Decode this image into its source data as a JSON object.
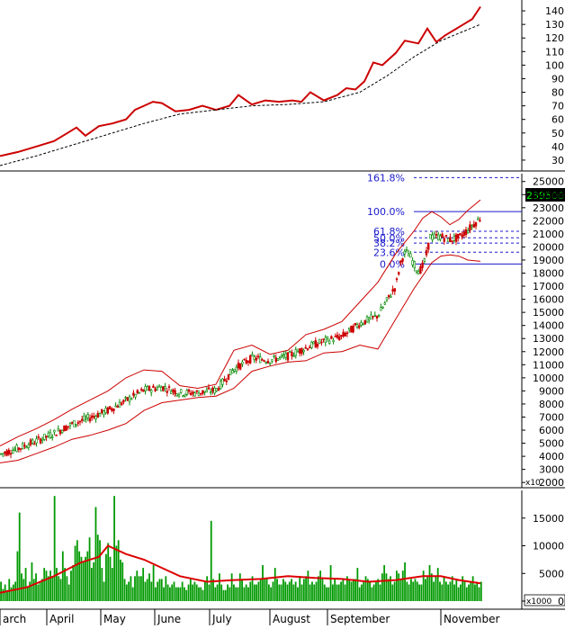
{
  "chart_data": [
    {
      "panel": "top-line",
      "type": "line",
      "y_ticks": [
        30,
        40,
        50,
        60,
        70,
        80,
        90,
        100,
        110,
        120,
        130,
        140
      ],
      "ylim": [
        22,
        148
      ],
      "grid": false,
      "series": [
        {
          "color": "#cc0000",
          "style": "solid",
          "points": [
            [
              0,
              33
            ],
            [
              20,
              36
            ],
            [
              40,
              40
            ],
            [
              60,
              44
            ],
            [
              75,
              50
            ],
            [
              85,
              54
            ],
            [
              95,
              48
            ],
            [
              110,
              55
            ],
            [
              125,
              57
            ],
            [
              140,
              60
            ],
            [
              150,
              67
            ],
            [
              160,
              70
            ],
            [
              170,
              73
            ],
            [
              180,
              72
            ],
            [
              195,
              66
            ],
            [
              210,
              67
            ],
            [
              225,
              70
            ],
            [
              240,
              67
            ],
            [
              255,
              70
            ],
            [
              265,
              78
            ],
            [
              280,
              71
            ],
            [
              295,
              74
            ],
            [
              310,
              73
            ],
            [
              325,
              74
            ],
            [
              335,
              73
            ],
            [
              345,
              80
            ],
            [
              360,
              74
            ],
            [
              375,
              78
            ],
            [
              385,
              83
            ],
            [
              395,
              82
            ],
            [
              405,
              88
            ],
            [
              415,
              102
            ],
            [
              425,
              100
            ],
            [
              440,
              109
            ],
            [
              450,
              118
            ],
            [
              465,
              116
            ],
            [
              475,
              127
            ],
            [
              485,
              117
            ],
            [
              495,
              122
            ],
            [
              510,
              128
            ],
            [
              525,
              134
            ],
            [
              534,
              143
            ]
          ]
        },
        {
          "color": "#000000",
          "style": "dashed",
          "points": [
            [
              0,
              26
            ],
            [
              40,
              33
            ],
            [
              80,
              41
            ],
            [
              120,
              49
            ],
            [
              160,
              57
            ],
            [
              200,
              64
            ],
            [
              240,
              67
            ],
            [
              280,
              70
            ],
            [
              320,
              71
            ],
            [
              360,
              73
            ],
            [
              400,
              80
            ],
            [
              430,
              92
            ],
            [
              460,
              106
            ],
            [
              490,
              118
            ],
            [
              534,
              130
            ]
          ]
        }
      ]
    },
    {
      "panel": "price",
      "type": "candlestick",
      "y_ticks": [
        2000,
        3000,
        4000,
        5000,
        6000,
        7000,
        8000,
        9000,
        10000,
        11000,
        12000,
        13000,
        14000,
        15000,
        16000,
        17000,
        18000,
        19000,
        20000,
        21000,
        22000,
        23000,
        24000,
        25000
      ],
      "ylim": [
        1600,
        25600
      ],
      "last_price_label": "239500.0",
      "y_unit_label": "x10",
      "fibonacci": [
        {
          "label": "161.8%",
          "value": 25300
        },
        {
          "label": "100.0%",
          "value": 22700
        },
        {
          "label": "61.8%",
          "value": 21200
        },
        {
          "label": "50.0%",
          "value": 20700
        },
        {
          "label": "38.2%",
          "value": 20300
        },
        {
          "label": "23.6%",
          "value": 19600
        },
        {
          "label": "0.0%",
          "value": 18700
        }
      ],
      "bollinger": {
        "x": [
          0,
          20,
          40,
          60,
          80,
          100,
          120,
          140,
          160,
          180,
          200,
          220,
          240,
          260,
          280,
          300,
          320,
          340,
          360,
          380,
          400,
          420,
          440,
          460,
          470,
          480,
          490,
          500,
          510,
          520,
          534
        ],
        "upper": [
          4800,
          5500,
          6100,
          6800,
          7600,
          8300,
          9000,
          10000,
          10600,
          10500,
          9400,
          9200,
          9500,
          12100,
          12500,
          11800,
          12100,
          13300,
          13700,
          14300,
          15800,
          17300,
          19500,
          21200,
          22200,
          22700,
          22300,
          21700,
          22100,
          22800,
          23600
        ],
        "lower": [
          3500,
          3700,
          4200,
          4700,
          5300,
          5600,
          6000,
          6500,
          7500,
          8100,
          8300,
          8500,
          8600,
          9200,
          10500,
          10900,
          11200,
          11300,
          11900,
          12000,
          12500,
          12200,
          14500,
          16800,
          17800,
          18800,
          19300,
          19400,
          19300,
          19000,
          18900
        ]
      },
      "x_labels": [
        "arch",
        "April",
        "May",
        "June",
        "July",
        "August",
        "September",
        "November"
      ]
    },
    {
      "panel": "volume",
      "type": "bar",
      "y_ticks": [
        0,
        5000,
        10000,
        15000
      ],
      "ylim": [
        0,
        20000
      ],
      "y_unit_label": "x1000",
      "values": [
        3500,
        2200,
        3000,
        2000,
        4000,
        2500,
        3000,
        3500,
        9000,
        16000,
        5000,
        4000,
        6000,
        2500,
        3500,
        7000,
        4000,
        5000,
        3000,
        3500,
        4000,
        6000,
        5500,
        4500,
        5500,
        4500,
        19000,
        6000,
        4500,
        4000,
        9000,
        6000,
        4500,
        3000,
        5500,
        6500,
        10000,
        11000,
        9000,
        8000,
        7000,
        8000,
        9000,
        11500,
        6000,
        7000,
        17000,
        12000,
        11000,
        6000,
        3500,
        8500,
        10500,
        8000,
        6000,
        19000,
        10000,
        11000,
        7500,
        7000,
        4000,
        3000,
        3500,
        4500,
        2500,
        4500,
        5500,
        4500,
        4500,
        6000,
        3500,
        4000,
        5000,
        3500,
        6500,
        2500,
        3500,
        4000,
        4000,
        2500,
        4500,
        3000,
        2500,
        3000,
        3500,
        2500,
        2500,
        2500,
        3500,
        2500,
        2000,
        3000,
        4000,
        3000,
        3500,
        3000,
        2500,
        2500,
        2000,
        3500,
        4500,
        3000,
        14500,
        4000,
        2500,
        3000,
        5000,
        3000,
        2000,
        2000,
        3000,
        2500,
        5000,
        3000,
        2500,
        2500,
        5000,
        4000,
        2500,
        3000,
        2500,
        3500,
        4500,
        3000,
        3000,
        3500,
        4000,
        6500,
        4000,
        4000,
        3000,
        2500,
        3500,
        6000,
        4000,
        3000,
        3000,
        4000,
        3500,
        3000,
        3500,
        4000,
        3000,
        3500,
        2500,
        4500,
        3000,
        4000,
        4500,
        5500,
        3000,
        3500,
        3000,
        3500,
        4500,
        5500,
        4000,
        3000,
        2500,
        2500,
        6500,
        3000,
        4000,
        3000,
        3000,
        3500,
        4000,
        3000,
        4500,
        4000,
        3500,
        4000,
        4000,
        6000,
        2500,
        3000,
        3500,
        4500,
        4000,
        3500,
        2500,
        3000,
        3500,
        4000,
        3000,
        5000,
        6500,
        5000,
        4000,
        4500,
        3000,
        3500,
        5500,
        5000,
        4000,
        5500,
        7000,
        3500,
        3000,
        4000,
        3500,
        4000,
        3500,
        3000,
        3000,
        5500,
        4000,
        4500,
        6500,
        5000,
        3500,
        4500,
        6000,
        3500,
        3000,
        4500,
        3500,
        3000,
        3500,
        4500,
        3000,
        4000,
        2500,
        3000,
        4500,
        3500,
        2500,
        3000,
        3500,
        4500,
        3000,
        3500,
        2500,
        3500
      ],
      "ma": {
        "x": [
          0,
          30,
          60,
          90,
          110,
          120,
          140,
          160,
          180,
          200,
          230,
          260,
          290,
          320,
          350,
          380,
          410,
          440,
          470,
          490,
          510,
          534
        ],
        "values": [
          1500,
          2500,
          4500,
          7000,
          8000,
          10000,
          8500,
          7500,
          6000,
          4500,
          3500,
          3800,
          4000,
          4500,
          4200,
          4000,
          3500,
          3800,
          4500,
          4500,
          3800,
          3200
        ]
      }
    }
  ]
}
